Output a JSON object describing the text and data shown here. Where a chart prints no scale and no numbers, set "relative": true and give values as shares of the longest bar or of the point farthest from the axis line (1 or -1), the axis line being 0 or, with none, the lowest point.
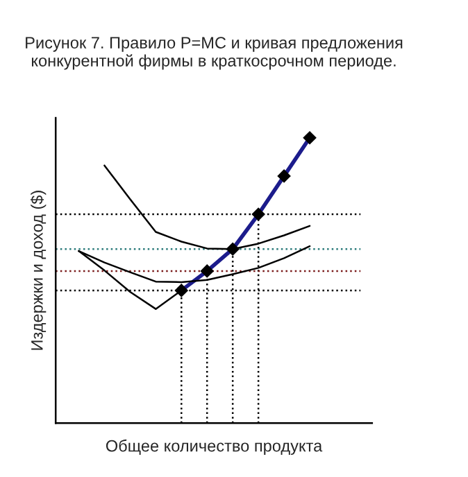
{
  "chart_data": {
    "type": "line",
    "relative": true,
    "title": "Рисунок 7. Правило P=MC и кривая предложения конкурентной фирмы в краткосрочном периоде.",
    "xlabel": "Общее количество продукта",
    "ylabel": "Издержки и доход ($)",
    "categories": [
      null,
      null,
      null,
      null,
      null,
      null,
      null,
      null,
      null,
      null
    ],
    "series": [
      {
        "color": "#1c1c8c",
        "marker": "diamond",
        "values": [
          null,
          null,
          null,
          null,
          0.465,
          0.533,
          0.61,
          0.732,
          0.866,
          1.0
        ]
      },
      {
        "color": "#000000",
        "values": [
          0.603,
          0.535,
          0.46,
          0.4,
          0.465,
          null,
          null,
          null,
          null,
          null
        ]
      },
      {
        "color": "#000000",
        "values": [
          null,
          0.903,
          0.785,
          0.67,
          0.636,
          0.612,
          0.61,
          0.629,
          0.658,
          0.691
        ]
      },
      {
        "color": "#000000",
        "values": [
          0.603,
          0.563,
          0.529,
          0.496,
          0.494,
          0.502,
          0.522,
          0.544,
          0.578,
          0.62
        ]
      }
    ],
    "ref_lines": [
      {
        "axis": "y",
        "value": 0.732,
        "color": "#000000",
        "line_style": "dotted"
      },
      {
        "axis": "y",
        "value": 0.61,
        "color": "#2a7a7a",
        "line_style": "dotted"
      },
      {
        "axis": "y",
        "value": 0.533,
        "color": "#7a1a1a",
        "line_style": "dotted"
      },
      {
        "axis": "y",
        "value": 0.465,
        "color": "#000000",
        "line_style": "dotted"
      }
    ]
  }
}
